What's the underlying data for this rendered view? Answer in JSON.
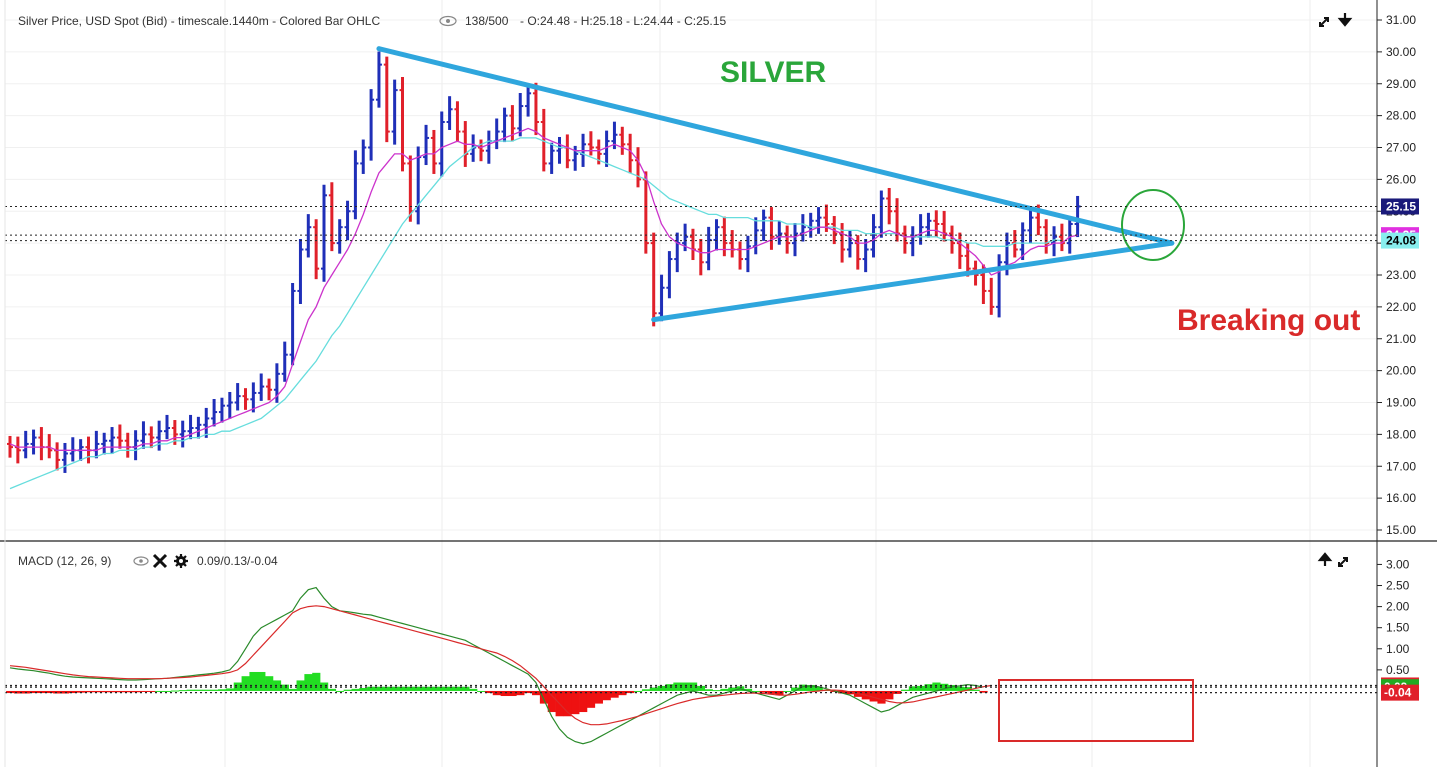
{
  "header": {
    "title": "Silver Price, USD Spot (Bid) - timescale.1440m - Colored Bar OHLC",
    "bars": "138/500",
    "ohlc": "- O:24.48 - H:25.18 - L:24.44 - C:25.15"
  },
  "macd_header": {
    "title": "MACD (12, 26, 9)",
    "values": "0.09/0.13/-0.04"
  },
  "annotations": {
    "silver": "SILVER",
    "breaking_out": "Breaking out"
  },
  "colors": {
    "up_bar": "#1f2fb8",
    "down_bar": "#e0202a",
    "neutral_bar": "#555555",
    "ma_fast": "#cc33cc",
    "ma_slow": "#66dddd",
    "trendline": "#2fa6dd",
    "silver_label": "#2aa63a",
    "breaking_label": "#d92a2a",
    "circle": "#2aa63a",
    "macd_line": "#2a8a2a",
    "signal_line": "#d92a2a",
    "hist_pos": "#22dd22",
    "hist_neg": "#ee1111"
  },
  "chart_data": [
    {
      "type": "ohlc",
      "name": "Silver Price, USD Spot (Bid)",
      "ylim": [
        15,
        31
      ],
      "yticks": [
        "15.00",
        "16.00",
        "17.00",
        "18.00",
        "19.00",
        "20.00",
        "21.00",
        "22.00",
        "23.00",
        "24.00",
        "25.00",
        "26.00",
        "27.00",
        "28.00",
        "29.00",
        "30.00",
        "31.00"
      ],
      "price_labels": [
        {
          "value": "25.15",
          "bg": "#1a1a7a",
          "fg": "#ffffff"
        },
        {
          "value": "24.25",
          "bg": "#e030e0",
          "fg": "#ffffff"
        },
        {
          "value": "24.08",
          "bg": "#88eeee",
          "fg": "#000000"
        }
      ],
      "close": [
        17.6,
        17.5,
        17.7,
        17.9,
        17.6,
        17.5,
        17.2,
        17.4,
        17.5,
        17.6,
        17.5,
        17.7,
        17.8,
        17.9,
        17.8,
        17.6,
        17.8,
        18.0,
        17.9,
        18.1,
        18.2,
        18.0,
        18.1,
        18.2,
        18.3,
        18.5,
        18.7,
        18.9,
        19.0,
        19.2,
        19.1,
        19.3,
        19.5,
        19.4,
        19.9,
        20.5,
        22.5,
        23.8,
        24.5,
        23.2,
        25.5,
        24.0,
        24.5,
        25.0,
        26.5,
        27.0,
        28.5,
        29.6,
        27.5,
        28.8,
        26.5,
        25.0,
        26.7,
        27.3,
        26.5,
        27.8,
        28.2,
        27.5,
        26.8,
        27.0,
        26.9,
        27.2,
        27.5,
        28.0,
        27.6,
        28.3,
        28.7,
        27.8,
        26.5,
        26.9,
        27.0,
        26.6,
        26.8,
        27.1,
        27.0,
        26.8,
        27.2,
        27.4,
        27.1,
        26.6,
        26.0,
        24.0,
        21.8,
        22.6,
        23.5,
        24.0,
        24.2,
        23.8,
        23.4,
        24.1,
        24.5,
        24.0,
        23.8,
        23.5,
        23.9,
        24.4,
        24.8,
        24.2,
        24.3,
        24.0,
        24.3,
        24.5,
        24.7,
        24.8,
        24.6,
        24.3,
        23.8,
        24.0,
        23.5,
        23.8,
        24.5,
        25.4,
        25.0,
        24.3,
        24.0,
        24.2,
        24.5,
        24.7,
        24.6,
        24.3,
        24.0,
        23.6,
        23.2,
        23.0,
        22.5,
        22.0,
        23.4,
        24.0,
        23.8,
        24.4,
        24.8,
        24.5,
        24.0,
        24.2,
        24.0,
        24.6,
        25.15
      ],
      "ma_fast": [
        17.7,
        17.6,
        17.6,
        17.6,
        17.6,
        17.6,
        17.5,
        17.5,
        17.5,
        17.5,
        17.5,
        17.5,
        17.6,
        17.6,
        17.6,
        17.6,
        17.6,
        17.7,
        17.7,
        17.8,
        17.8,
        17.9,
        17.9,
        18.0,
        18.1,
        18.2,
        18.3,
        18.4,
        18.5,
        18.6,
        18.7,
        18.8,
        18.9,
        19.0,
        19.2,
        19.5,
        20.2,
        20.9,
        21.6,
        22.0,
        22.6,
        23.0,
        23.4,
        23.8,
        24.3,
        24.9,
        25.6,
        26.2,
        26.5,
        26.8,
        26.8,
        26.6,
        26.7,
        26.8,
        26.8,
        27.0,
        27.1,
        27.2,
        27.1,
        27.1,
        27.0,
        27.1,
        27.2,
        27.3,
        27.4,
        27.5,
        27.6,
        27.5,
        27.3,
        27.2,
        27.1,
        27.0,
        26.9,
        26.9,
        26.9,
        26.9,
        27.0,
        27.1,
        27.0,
        26.9,
        26.6,
        26.1,
        25.3,
        24.6,
        24.2,
        24.0,
        23.9,
        23.8,
        23.7,
        23.7,
        23.8,
        23.8,
        23.8,
        23.8,
        23.8,
        23.9,
        24.0,
        24.1,
        24.2,
        24.2,
        24.2,
        24.3,
        24.4,
        24.5,
        24.5,
        24.4,
        24.3,
        24.2,
        24.0,
        24.0,
        24.1,
        24.3,
        24.4,
        24.3,
        24.2,
        24.2,
        24.3,
        24.4,
        24.4,
        24.3,
        24.2,
        24.0,
        23.8,
        23.6,
        23.3,
        23.0,
        23.1,
        23.3,
        23.4,
        23.6,
        23.8,
        23.9,
        23.9,
        24.0,
        24.0,
        24.2,
        24.25
      ],
      "ma_slow": [
        16.3,
        16.4,
        16.5,
        16.6,
        16.7,
        16.8,
        16.9,
        17.0,
        17.1,
        17.2,
        17.3,
        17.3,
        17.4,
        17.4,
        17.5,
        17.5,
        17.5,
        17.6,
        17.6,
        17.7,
        17.7,
        17.8,
        17.8,
        17.9,
        17.9,
        18.0,
        18.0,
        18.1,
        18.1,
        18.2,
        18.3,
        18.4,
        18.5,
        18.7,
        18.9,
        19.1,
        19.4,
        19.7,
        20.0,
        20.3,
        20.7,
        21.1,
        21.4,
        21.8,
        22.2,
        22.6,
        23.0,
        23.4,
        23.8,
        24.2,
        24.6,
        24.9,
        25.2,
        25.5,
        25.8,
        26.1,
        26.4,
        26.6,
        26.8,
        27.0,
        27.1,
        27.2,
        27.2,
        27.2,
        27.2,
        27.3,
        27.3,
        27.3,
        27.2,
        27.1,
        27.0,
        27.0,
        26.9,
        26.8,
        26.7,
        26.6,
        26.5,
        26.4,
        26.3,
        26.2,
        26.1,
        26.0,
        25.8,
        25.6,
        25.4,
        25.3,
        25.2,
        25.1,
        25.0,
        24.9,
        24.9,
        24.8,
        24.8,
        24.8,
        24.8,
        24.7,
        24.7,
        24.7,
        24.7,
        24.6,
        24.6,
        24.6,
        24.5,
        24.5,
        24.5,
        24.5,
        24.4,
        24.4,
        24.4,
        24.3,
        24.3,
        24.3,
        24.3,
        24.3,
        24.2,
        24.2,
        24.2,
        24.2,
        24.2,
        24.1,
        24.1,
        24.1,
        24.0,
        24.0,
        23.9,
        23.9,
        23.9,
        23.9,
        24.0,
        24.0,
        24.0,
        24.0,
        24.0,
        24.1,
        24.08
      ],
      "trendlines": [
        {
          "from": [
            47,
            30.1
          ],
          "to": [
            148,
            24.0
          ]
        },
        {
          "from": [
            82,
            21.6
          ],
          "to": [
            148,
            24.0
          ]
        }
      ]
    },
    {
      "type": "macd",
      "name": "MACD (12, 26, 9)",
      "ylim": [
        -1.4,
        3.2
      ],
      "yticks": [
        "0.50",
        "1.00",
        "1.50",
        "2.00",
        "2.50",
        "3.00"
      ],
      "value_labels": [
        {
          "value": "0.13",
          "bg": "#e0202a",
          "fg": "#ffffff"
        },
        {
          "value": "0.09",
          "bg": "#22aa22",
          "fg": "#ffffff"
        },
        {
          "value": "-0.04",
          "bg": "#e0202a",
          "fg": "#ffffff"
        }
      ],
      "macd": [
        0.55,
        0.52,
        0.5,
        0.48,
        0.45,
        0.42,
        0.38,
        0.35,
        0.33,
        0.32,
        0.31,
        0.3,
        0.29,
        0.28,
        0.27,
        0.26,
        0.26,
        0.27,
        0.28,
        0.29,
        0.3,
        0.32,
        0.34,
        0.36,
        0.38,
        0.4,
        0.42,
        0.45,
        0.5,
        0.7,
        1.0,
        1.3,
        1.5,
        1.6,
        1.7,
        1.8,
        1.9,
        2.2,
        2.4,
        2.45,
        2.2,
        2.0,
        1.9,
        1.88,
        1.85,
        1.82,
        1.8,
        1.75,
        1.7,
        1.65,
        1.6,
        1.55,
        1.5,
        1.45,
        1.4,
        1.35,
        1.3,
        1.25,
        1.2,
        1.1,
        1.0,
        0.9,
        0.8,
        0.7,
        0.6,
        0.5,
        0.4,
        0.2,
        -0.2,
        -0.6,
        -0.9,
        -1.1,
        -1.2,
        -1.25,
        -1.2,
        -1.1,
        -1.0,
        -0.9,
        -0.8,
        -0.7,
        -0.6,
        -0.5,
        -0.4,
        -0.3,
        -0.2,
        -0.1,
        -0.05,
        0.0,
        -0.05,
        -0.1,
        -0.1,
        -0.05,
        0.0,
        0.05,
        0.0,
        -0.05,
        -0.1,
        -0.15,
        -0.2,
        -0.1,
        0.0,
        0.1,
        0.12,
        0.1,
        0.05,
        0.0,
        -0.05,
        -0.1,
        -0.2,
        -0.3,
        -0.4,
        -0.5,
        -0.45,
        -0.35,
        -0.25,
        -0.15,
        -0.1,
        -0.05,
        0.0,
        0.05,
        0.1,
        0.12,
        0.15,
        0.13,
        0.09
      ],
      "signal": [
        0.6,
        0.58,
        0.56,
        0.53,
        0.5,
        0.47,
        0.44,
        0.41,
        0.38,
        0.36,
        0.34,
        0.33,
        0.32,
        0.31,
        0.3,
        0.29,
        0.29,
        0.29,
        0.29,
        0.29,
        0.3,
        0.31,
        0.32,
        0.33,
        0.35,
        0.37,
        0.39,
        0.41,
        0.44,
        0.5,
        0.65,
        0.85,
        1.05,
        1.25,
        1.45,
        1.65,
        1.85,
        1.95,
        2.0,
        2.02,
        2.0,
        1.95,
        1.9,
        1.85,
        1.8,
        1.75,
        1.7,
        1.65,
        1.6,
        1.55,
        1.5,
        1.45,
        1.4,
        1.35,
        1.3,
        1.25,
        1.2,
        1.15,
        1.1,
        1.05,
        1.0,
        0.95,
        0.9,
        0.82,
        0.72,
        0.6,
        0.45,
        0.3,
        0.1,
        -0.1,
        -0.3,
        -0.5,
        -0.65,
        -0.75,
        -0.8,
        -0.8,
        -0.78,
        -0.74,
        -0.7,
        -0.65,
        -0.6,
        -0.54,
        -0.48,
        -0.42,
        -0.36,
        -0.3,
        -0.25,
        -0.2,
        -0.17,
        -0.14,
        -0.12,
        -0.1,
        -0.08,
        -0.06,
        -0.05,
        -0.05,
        -0.06,
        -0.08,
        -0.1,
        -0.1,
        -0.08,
        -0.05,
        -0.02,
        0.0,
        0.02,
        0.02,
        0.01,
        -0.02,
        -0.06,
        -0.1,
        -0.15,
        -0.2,
        -0.25,
        -0.28,
        -0.28,
        -0.26,
        -0.22,
        -0.18,
        -0.14,
        -0.1,
        -0.06,
        -0.02,
        0.02,
        0.06,
        0.1,
        0.13
      ],
      "hist": [
        -0.05,
        -0.06,
        -0.06,
        -0.05,
        -0.05,
        -0.05,
        -0.06,
        -0.06,
        -0.05,
        -0.04,
        -0.03,
        -0.03,
        -0.03,
        -0.03,
        -0.03,
        -0.03,
        -0.03,
        -0.02,
        -0.01,
        0.0,
        0.0,
        0.01,
        0.02,
        0.03,
        0.03,
        0.03,
        0.03,
        0.04,
        0.06,
        0.2,
        0.35,
        0.45,
        0.45,
        0.35,
        0.25,
        0.15,
        0.05,
        0.25,
        0.4,
        0.43,
        0.2,
        0.05,
        0.0,
        0.03,
        0.05,
        0.07,
        0.1,
        0.1,
        0.1,
        0.1,
        0.1,
        0.1,
        0.1,
        0.1,
        0.1,
        0.1,
        0.1,
        0.1,
        0.1,
        0.05,
        0.0,
        -0.05,
        -0.1,
        -0.12,
        -0.12,
        -0.1,
        -0.05,
        -0.1,
        -0.3,
        -0.5,
        -0.6,
        -0.6,
        -0.55,
        -0.5,
        -0.4,
        -0.3,
        -0.22,
        -0.16,
        -0.1,
        -0.05,
        0.0,
        0.04,
        0.08,
        0.12,
        0.16,
        0.2,
        0.2,
        0.2,
        0.12,
        0.04,
        0.02,
        0.05,
        0.08,
        0.11,
        0.05,
        0.0,
        -0.04,
        -0.07,
        -0.1,
        0.0,
        0.08,
        0.15,
        0.14,
        0.1,
        0.03,
        -0.02,
        -0.06,
        -0.08,
        -0.14,
        -0.2,
        -0.25,
        -0.3,
        -0.2,
        -0.07,
        0.03,
        0.11,
        0.12,
        0.16,
        0.2,
        0.17,
        0.14,
        0.1,
        0.09,
        0.03,
        -0.04
      ]
    }
  ]
}
